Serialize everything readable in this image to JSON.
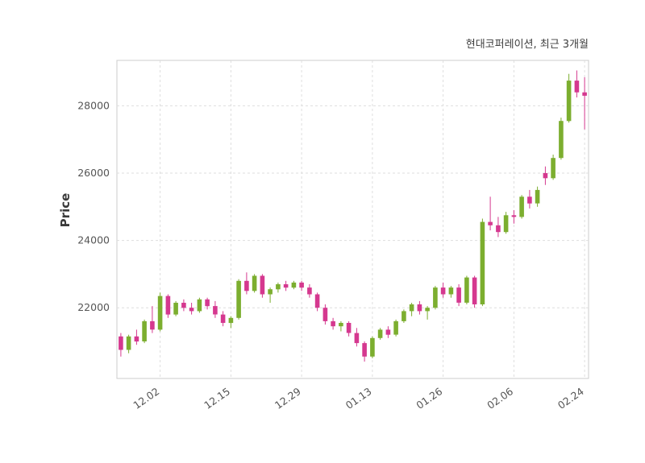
{
  "header": {
    "title": "현대코퍼레이션, 최근 3개월"
  },
  "chart_data": {
    "type": "candlestick",
    "title": "현대코퍼레이션, 최근 3개월",
    "xlabel": "",
    "ylabel": "Price",
    "ylim": [
      19900,
      29350
    ],
    "yticks": [
      22000,
      24000,
      26000,
      28000
    ],
    "grid": true,
    "legend": "none",
    "colors": {
      "up": "#7cae2f",
      "down": "#d5388f",
      "grid": "#dedede",
      "border": "#cccccc",
      "axis_text": "#555555",
      "title_text": "#3d3d3d"
    },
    "xticks": [
      {
        "index": 5,
        "label": "12.02"
      },
      {
        "index": 14,
        "label": "12.15"
      },
      {
        "index": 23,
        "label": "12.29"
      },
      {
        "index": 32,
        "label": "01.13"
      },
      {
        "index": 41,
        "label": "01.26"
      },
      {
        "index": 50,
        "label": "02.06"
      },
      {
        "index": 59,
        "label": "02.24"
      }
    ],
    "ohlc": [
      [
        21150,
        21250,
        20550,
        20750
      ],
      [
        20750,
        21200,
        20650,
        21150
      ],
      [
        21150,
        21350,
        20900,
        21000
      ],
      [
        21000,
        21650,
        20950,
        21600
      ],
      [
        21600,
        22050,
        21250,
        21350
      ],
      [
        21350,
        22450,
        21300,
        22350
      ],
      [
        22350,
        22400,
        21700,
        21800
      ],
      [
        21800,
        22200,
        21750,
        22150
      ],
      [
        22150,
        22250,
        21900,
        22000
      ],
      [
        22000,
        22150,
        21800,
        21900
      ],
      [
        21900,
        22300,
        21850,
        22250
      ],
      [
        22250,
        22300,
        21950,
        22050
      ],
      [
        22050,
        22200,
        21700,
        21800
      ],
      [
        21800,
        21900,
        21450,
        21550
      ],
      [
        21550,
        21750,
        21400,
        21700
      ],
      [
        21700,
        22850,
        21650,
        22800
      ],
      [
        22800,
        23050,
        22400,
        22500
      ],
      [
        22500,
        23000,
        22450,
        22950
      ],
      [
        22950,
        23000,
        22300,
        22400
      ],
      [
        22400,
        22600,
        22150,
        22550
      ],
      [
        22550,
        22750,
        22450,
        22700
      ],
      [
        22700,
        22800,
        22500,
        22600
      ],
      [
        22600,
        22800,
        22550,
        22750
      ],
      [
        22750,
        22800,
        22500,
        22600
      ],
      [
        22600,
        22700,
        22300,
        22400
      ],
      [
        22400,
        22450,
        21900,
        22000
      ],
      [
        22000,
        22100,
        21500,
        21600
      ],
      [
        21600,
        21700,
        21350,
        21450
      ],
      [
        21450,
        21600,
        21300,
        21550
      ],
      [
        21550,
        21600,
        21150,
        21250
      ],
      [
        21250,
        21400,
        20850,
        20950
      ],
      [
        20950,
        21000,
        20400,
        20550
      ],
      [
        20550,
        21150,
        20500,
        21100
      ],
      [
        21100,
        21400,
        21050,
        21350
      ],
      [
        21350,
        21450,
        21100,
        21200
      ],
      [
        21200,
        21650,
        21150,
        21600
      ],
      [
        21600,
        21950,
        21550,
        21900
      ],
      [
        21900,
        22150,
        21750,
        22100
      ],
      [
        22100,
        22200,
        21800,
        21900
      ],
      [
        21900,
        22050,
        21650,
        22000
      ],
      [
        22000,
        22650,
        21950,
        22600
      ],
      [
        22600,
        22750,
        22300,
        22400
      ],
      [
        22400,
        22650,
        22300,
        22600
      ],
      [
        22600,
        22700,
        22050,
        22150
      ],
      [
        22150,
        22950,
        22100,
        22900
      ],
      [
        22900,
        22950,
        22000,
        22100
      ],
      [
        22100,
        24650,
        22050,
        24550
      ],
      [
        24550,
        25300,
        24300,
        24450
      ],
      [
        24450,
        24700,
        24100,
        24250
      ],
      [
        24250,
        24850,
        24200,
        24750
      ],
      [
        24750,
        24900,
        24500,
        24700
      ],
      [
        24700,
        25350,
        24650,
        25300
      ],
      [
        25300,
        25500,
        24950,
        25100
      ],
      [
        25100,
        25600,
        25000,
        25500
      ],
      [
        26000,
        26200,
        25650,
        25850
      ],
      [
        25850,
        26550,
        25800,
        26450
      ],
      [
        26450,
        27650,
        26400,
        27550
      ],
      [
        27550,
        28950,
        27500,
        28750
      ],
      [
        28750,
        29050,
        28250,
        28400
      ],
      [
        28400,
        28850,
        27300,
        28300
      ]
    ]
  }
}
